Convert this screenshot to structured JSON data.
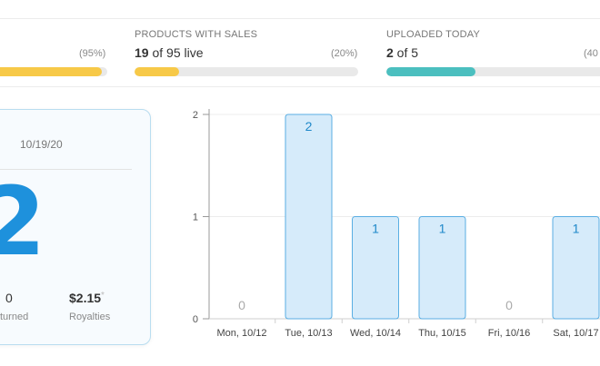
{
  "stats": [
    {
      "label": "",
      "value_bold": "",
      "value_rest": "",
      "percent_text": "(95%)",
      "percent": 0.95,
      "color": "#f7c948"
    },
    {
      "label": "PRODUCTS WITH SALES",
      "value_bold": "19",
      "value_rest": " of 95 live",
      "percent_text": "(20%)",
      "percent": 0.2,
      "color": "#f7c948"
    },
    {
      "label": "UPLOADED TODAY",
      "value_bold": "2",
      "value_rest": " of 5",
      "percent_text": "(40",
      "percent": 0.4,
      "color": "#4bbfbf"
    }
  ],
  "card": {
    "date": "10/19/20",
    "big_number": "2",
    "returned_value": "0",
    "returned_label": "turned",
    "royalties_value": "$2.15",
    "royalties_asterisk": "*",
    "royalties_label": "Royalties"
  },
  "chart_data": {
    "type": "bar",
    "categories": [
      "Mon, 10/12",
      "Tue, 10/13",
      "Wed, 10/14",
      "Thu, 10/15",
      "Fri, 10/16",
      "Sat, 10/17"
    ],
    "values": [
      0,
      2,
      1,
      1,
      0,
      1
    ],
    "data_labels": [
      "0",
      "2",
      "1",
      "1",
      "0",
      "1"
    ],
    "y_ticks": [
      "0",
      "1",
      "2"
    ],
    "ylim": [
      0,
      2
    ],
    "grid": true,
    "bar_fill": "#d6ebfa",
    "bar_stroke": "#5aaee3",
    "label_color_nonzero": "#1f88c9",
    "label_color_zero": "#aaaaaa"
  }
}
